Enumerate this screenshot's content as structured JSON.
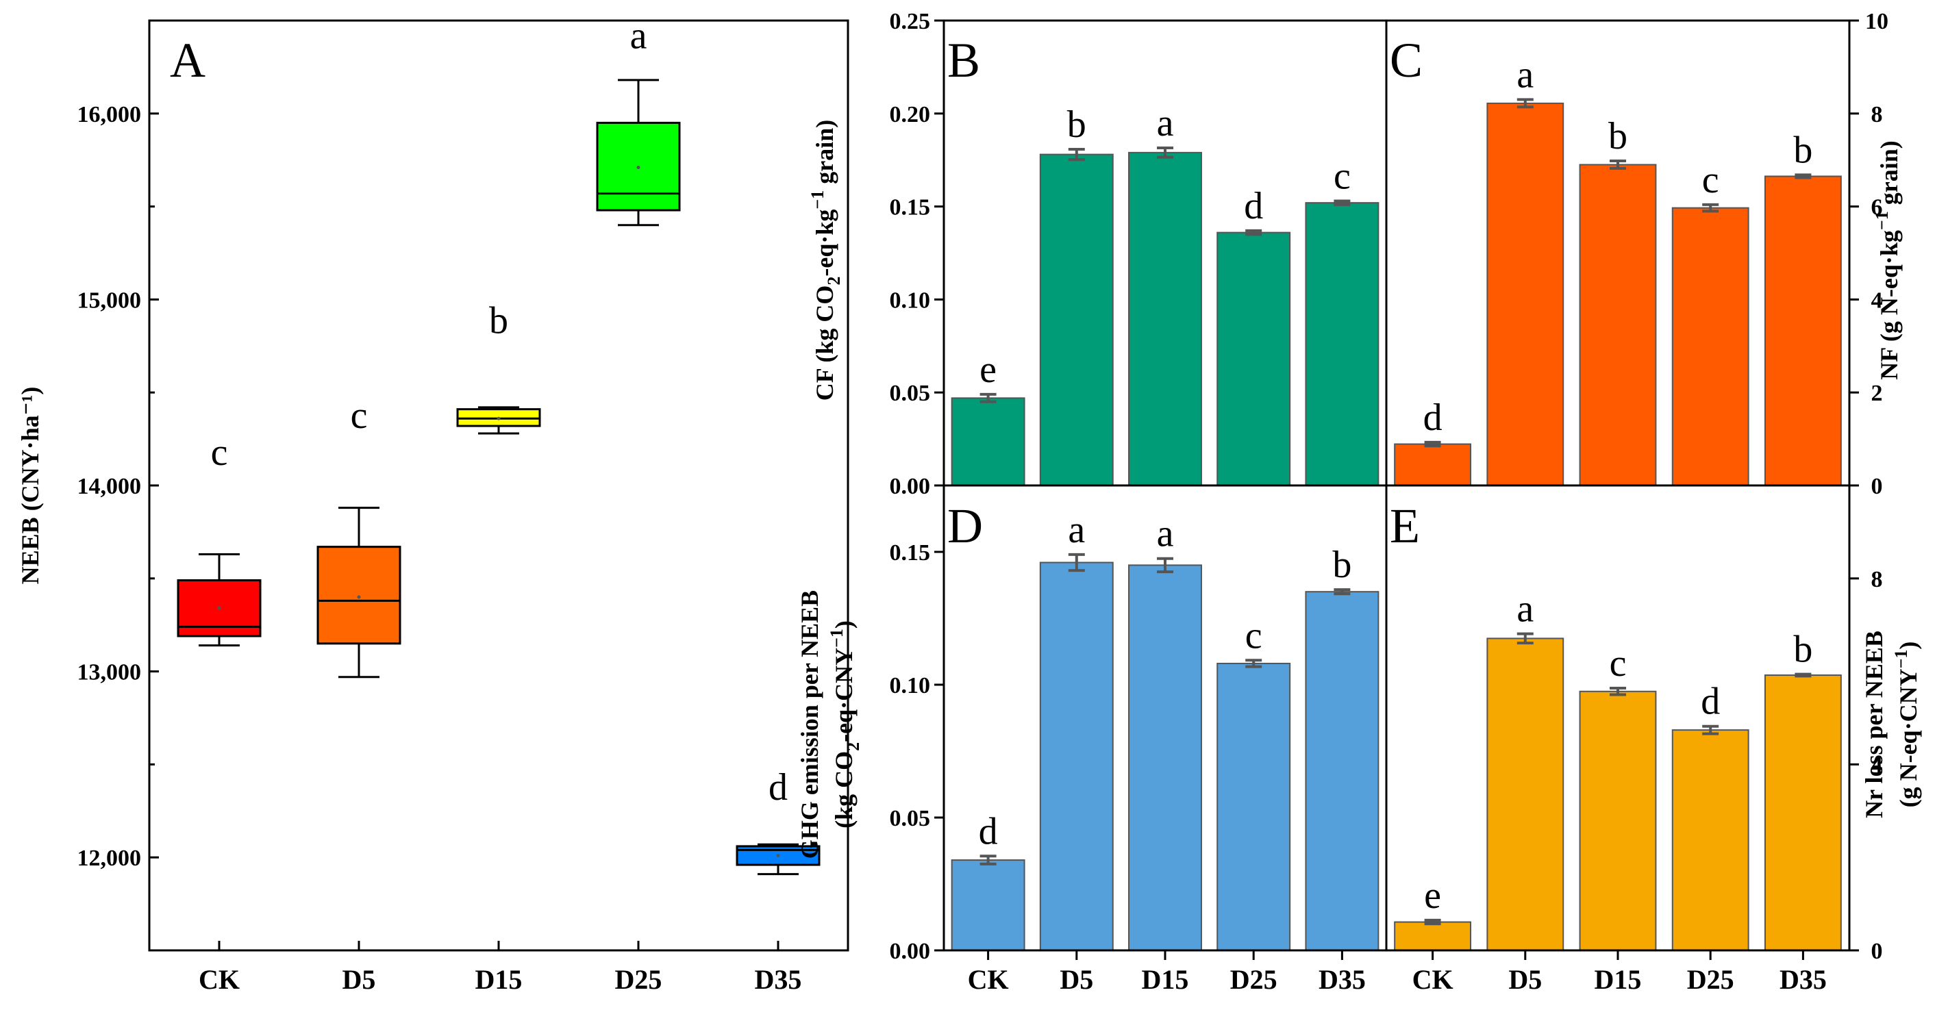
{
  "chart_data": [
    {
      "panel": "A",
      "type": "box",
      "ylabel": "NEEB (CNY·ha⁻¹)",
      "ylim": [
        11500,
        16500
      ],
      "yticks": [
        12000,
        13000,
        14000,
        15000,
        16000
      ],
      "ytick_labels": [
        "12,000",
        "13,000",
        "14,000",
        "15,000",
        "16,000"
      ],
      "categories": [
        "CK",
        "D5",
        "D15",
        "D25",
        "D35"
      ],
      "colors": [
        "#ff0000",
        "#ff6600",
        "#ffff00",
        "#00ff00",
        "#0080ff"
      ],
      "boxes": [
        {
          "min": 13140,
          "q1": 13190,
          "median": 13240,
          "mean": 13340,
          "q3": 13490,
          "max": 13630
        },
        {
          "min": 12970,
          "q1": 13150,
          "median": 13380,
          "mean": 13400,
          "q3": 13670,
          "max": 13880
        },
        {
          "min": 14280,
          "q1": 14320,
          "median": 14360,
          "mean": 14360,
          "q3": 14410,
          "max": 14420
        },
        {
          "min": 15400,
          "q1": 15480,
          "median": 15570,
          "mean": 15710,
          "q3": 15950,
          "max": 16180
        },
        {
          "min": 11910,
          "q1": 11960,
          "median": 12040,
          "mean": 12010,
          "q3": 12060,
          "max": 12070
        }
      ],
      "letters": [
        "c",
        "c",
        "b",
        "a",
        "d"
      ],
      "letter_y": [
        14110,
        14310,
        14820,
        16350,
        12310
      ]
    },
    {
      "panel": "B",
      "type": "bar",
      "ylabel": "CF (kg CO₂-eq·kg⁻¹ grain)",
      "ylim": [
        0,
        0.25
      ],
      "yticks": [
        0,
        0.05,
        0.1,
        0.15,
        0.2,
        0.25
      ],
      "ytick_labels": [
        "0.00",
        "0.05",
        "0.10",
        "0.15",
        "0.20",
        "0.25"
      ],
      "categories": [
        "CK",
        "D5",
        "D15",
        "D25",
        "D35"
      ],
      "values": [
        0.047,
        0.178,
        0.179,
        0.136,
        0.152
      ],
      "errors": [
        0.002,
        0.0028,
        0.0025,
        0.001,
        0.001
      ],
      "letters": [
        "e",
        "b",
        "a",
        "d",
        "c"
      ],
      "color": "#009b77"
    },
    {
      "panel": "C",
      "type": "bar",
      "ylabel": "NF (g N-eq·kg⁻¹ grain)",
      "ylim": [
        0,
        10
      ],
      "yticks": [
        0,
        2,
        4,
        6,
        8,
        10
      ],
      "ytick_labels": [
        "0",
        "2",
        "4",
        "6",
        "8",
        "10"
      ],
      "categories": [
        "CK",
        "D5",
        "D15",
        "D25",
        "D35"
      ],
      "values": [
        0.89,
        8.22,
        6.9,
        5.97,
        6.65
      ],
      "errors": [
        0.04,
        0.08,
        0.08,
        0.07,
        0.03
      ],
      "letters": [
        "d",
        "a",
        "b",
        "c",
        "b"
      ],
      "color": "#ff5a00"
    },
    {
      "panel": "D",
      "type": "bar",
      "ylabel": "GHG emission per NEEB",
      "ylabel2": "(kg CO₂-eq·CNY⁻¹)",
      "ylim": [
        0,
        0.175
      ],
      "yticks": [
        0,
        0.05,
        0.1,
        0.15
      ],
      "ytick_labels": [
        "0.00",
        "0.05",
        "0.10",
        "0.15"
      ],
      "categories": [
        "CK",
        "D5",
        "D15",
        "D25",
        "D35"
      ],
      "values": [
        0.034,
        0.146,
        0.145,
        0.108,
        0.135
      ],
      "errors": [
        0.0015,
        0.003,
        0.0025,
        0.0012,
        0.0008
      ],
      "letters": [
        "d",
        "a",
        "a",
        "c",
        "b"
      ],
      "color": "#559fdb"
    },
    {
      "panel": "E",
      "type": "bar",
      "ylabel": "Nr loss per NEEB",
      "ylabel2": "(g N-eq·CNY⁻¹)",
      "ylim": [
        0,
        10
      ],
      "yticks": [
        0,
        4,
        8
      ],
      "ytick_labels": [
        "0",
        "4",
        "8"
      ],
      "categories": [
        "CK",
        "D5",
        "D15",
        "D25",
        "D35"
      ],
      "values": [
        0.61,
        6.71,
        5.57,
        4.74,
        5.92
      ],
      "errors": [
        0.04,
        0.1,
        0.07,
        0.08,
        0.02
      ],
      "letters": [
        "e",
        "a",
        "c",
        "d",
        "b"
      ],
      "color": "#f7a800"
    }
  ]
}
